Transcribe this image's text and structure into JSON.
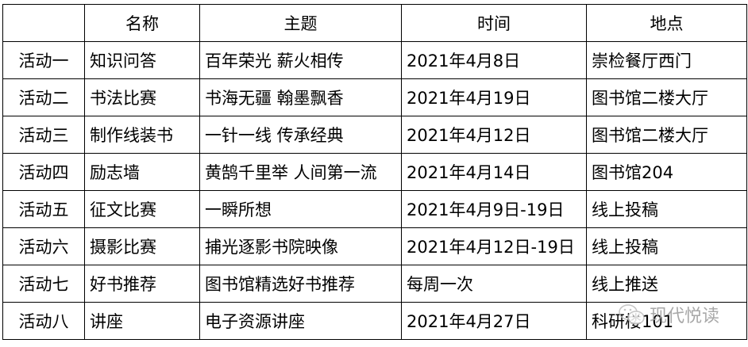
{
  "table": {
    "headers": [
      "",
      "名称",
      "主题",
      "时间",
      "地点"
    ],
    "rows": [
      [
        "活动一",
        "知识问答",
        "百年荣光 薪火相传",
        "2021年4月8日",
        "崇检餐厅西门"
      ],
      [
        "活动二",
        "书法比赛",
        "书海无疆 翰墨飘香",
        "2021年4月19日",
        "图书馆二楼大厅"
      ],
      [
        "活动三",
        "制作线装书",
        "一针一线 传承经典",
        "2021年4月12日",
        "图书馆二楼大厅"
      ],
      [
        "活动四",
        "励志墙",
        "黄鹄千里举 人间第一流",
        "2021年4月14日",
        "图书馆204"
      ],
      [
        "活动五",
        "征文比赛",
        "一瞬所想",
        "2021年4月9日-19日",
        "线上投稿"
      ],
      [
        "活动六",
        "摄影比赛",
        "捕光逐影书院映像",
        "2021年4月12日-19日",
        "线上投稿"
      ],
      [
        "活动七",
        "好书推荐",
        "图书馆精选好书推荐",
        "每周一次",
        "线上推送"
      ],
      [
        "活动八",
        "讲座",
        "电子资源讲座",
        "2021年4月27日",
        "科研楼101"
      ]
    ]
  },
  "watermark": {
    "icon": "wechat-icon",
    "text": "现代悦读"
  }
}
